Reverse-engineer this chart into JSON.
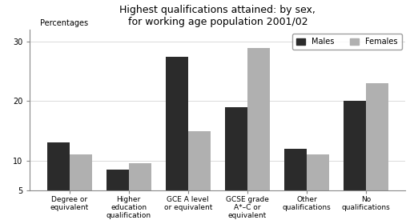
{
  "title": "Highest qualifications attained: by sex,\nfor working age population 2001/02",
  "percentages_label": "Percentages",
  "categories": [
    "Degree or\nequivalent",
    "Higher\neducation\nqualification",
    "GCE A level\nor equivalent",
    "GCSE grade\nA*–C or\nequivalent",
    "Other\nqualifications",
    "No\nqualifications"
  ],
  "males": [
    13.0,
    8.5,
    27.5,
    19.0,
    12.0,
    20.0
  ],
  "females": [
    11.0,
    9.5,
    15.0,
    29.0,
    11.0,
    23.0
  ],
  "males_color": "#2b2b2b",
  "females_color": "#b0b0b0",
  "ylim": [
    5,
    32
  ],
  "yticks": [
    5,
    10,
    20,
    30
  ],
  "bar_width": 0.38,
  "background_color": "#ffffff",
  "legend_labels": [
    "Males",
    "Females"
  ],
  "title_fontsize": 9,
  "label_fontsize": 6.5,
  "tick_fontsize": 7,
  "percentages_fontsize": 7
}
